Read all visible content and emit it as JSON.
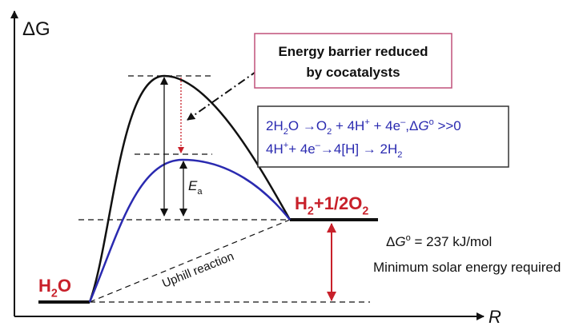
{
  "axes": {
    "y_label": "ΔG",
    "x_label": "R"
  },
  "callout": {
    "lines": [
      "Energy barrier reduced",
      "by cocatalysts"
    ]
  },
  "equations": [
    [
      {
        "text": "2H"
      },
      {
        "text": "2",
        "style": "sub"
      },
      {
        "text": "O →O"
      },
      {
        "text": "2",
        "style": "sub"
      },
      {
        "text": " + 4H"
      },
      {
        "text": "+",
        "style": "sup"
      },
      {
        "text": " + 4e"
      },
      {
        "text": "–",
        "style": "sup"
      },
      {
        "text": ",Δ"
      },
      {
        "text": "G",
        "style": "italic"
      },
      {
        "text": "o",
        "style": "sup"
      },
      {
        "text": " >>0"
      }
    ],
    [
      {
        "text": "4H"
      },
      {
        "text": "+",
        "style": "sup"
      },
      {
        "text": "+ 4e"
      },
      {
        "text": "–",
        "style": "sup"
      },
      {
        "text": "→4[H] → 2H"
      },
      {
        "text": "2",
        "style": "sub"
      }
    ]
  ],
  "labels": {
    "reactant": [
      {
        "text": "H"
      },
      {
        "text": "2",
        "style": "sub"
      },
      {
        "text": "O"
      }
    ],
    "product": [
      {
        "text": "H"
      },
      {
        "text": "2",
        "style": "sub"
      },
      {
        "text": "+1/2O"
      },
      {
        "text": "2",
        "style": "sub"
      }
    ],
    "activation": [
      {
        "text": "E",
        "style": "italic"
      },
      {
        "text": "a",
        "style": "sub"
      }
    ],
    "uphill": "Uphill reaction",
    "delta_g": [
      {
        "text": "Δ"
      },
      {
        "text": "G",
        "style": "italic"
      },
      {
        "text": "o",
        "style": "sup"
      },
      {
        "text": " = 237 kJ/mol"
      }
    ],
    "solar": "Minimum solar energy required"
  }
}
